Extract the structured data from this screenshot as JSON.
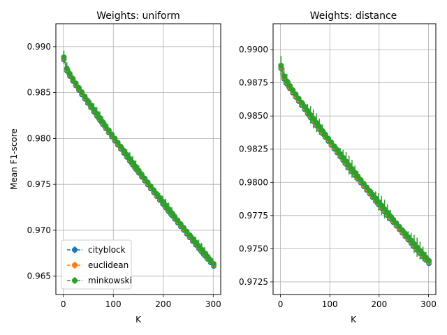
{
  "colors": {
    "cityblock": "#1f77b4",
    "euclidean": "#ff7f0e",
    "minkowski": "#2ca02c",
    "grid": "#b0b0b0"
  },
  "chart_data": [
    {
      "type": "line",
      "title": "Weights: uniform",
      "xlabel": "K",
      "ylabel": "Mean F1-score",
      "xlim": [
        -15,
        315
      ],
      "ylim": [
        0.963,
        0.9925
      ],
      "x_ticks": [
        0,
        100,
        200,
        300
      ],
      "y_ticks": [
        0.965,
        0.97,
        0.975,
        0.98,
        0.985,
        0.99
      ],
      "y_tick_labels": [
        "0.965",
        "0.970",
        "0.975",
        "0.980",
        "0.985",
        "0.990"
      ],
      "grid": true,
      "legend": "lower-left",
      "curve": {
        "start": 0.9886,
        "end": 0.9661,
        "shape": [
          9.6,
          0.042
        ],
        "fill": [
          0.05,
          0.85
        ]
      },
      "series": [
        {
          "name": "cityblock",
          "err_scale": 0.0,
          "offset": 0.0
        },
        {
          "name": "euclidean",
          "err_scale": 0.0,
          "offset": 0.00015
        },
        {
          "name": "minkowski",
          "err_scale": 1.0,
          "offset": 0.00025
        }
      ]
    },
    {
      "type": "line",
      "title": "Weights: distance",
      "xlabel": "K",
      "ylabel": "",
      "xlim": [
        -15,
        315
      ],
      "ylim": [
        0.97155,
        0.99195
      ],
      "x_ticks": [
        0,
        100,
        200,
        300
      ],
      "y_ticks": [
        0.9725,
        0.975,
        0.9775,
        0.98,
        0.9825,
        0.985,
        0.9875,
        0.99
      ],
      "y_tick_labels": [
        "0.9725",
        "0.9750",
        "0.9775",
        "0.9800",
        "0.9825",
        "0.9850",
        "0.9875",
        "0.9900"
      ],
      "grid": true,
      "legend": "",
      "curve": {
        "start": 0.9886,
        "end": 0.9739,
        "shape": [
          9.6,
          0.042
        ],
        "fill": [
          0.05,
          0.85
        ]
      },
      "series": [
        {
          "name": "cityblock",
          "err_scale": 0.0,
          "offset": 0.0
        },
        {
          "name": "euclidean",
          "err_scale": 0.0,
          "offset": 0.0001
        },
        {
          "name": "minkowski",
          "err_scale": 1.0,
          "offset": 0.0002
        }
      ]
    }
  ]
}
